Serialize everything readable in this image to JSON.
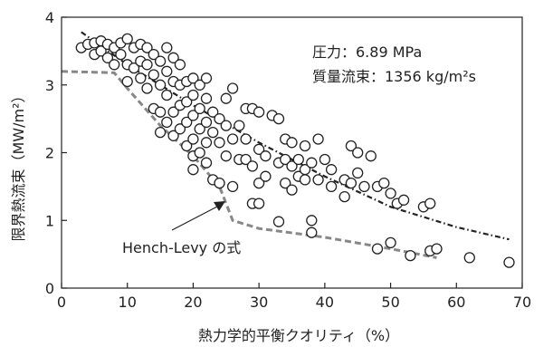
{
  "chart_data": {
    "type": "scatter",
    "xlabel": "熱力学的平衡クオリティ（%）",
    "ylabel": "限界熱流束（MW/m²）",
    "xlim": [
      0,
      70
    ],
    "ylim": [
      0,
      4
    ],
    "x_ticks": [
      "0",
      "10",
      "20",
      "30",
      "40",
      "50",
      "60",
      "70"
    ],
    "y_ticks": [
      "0",
      "1",
      "2",
      "3",
      "4"
    ],
    "grid": false,
    "annotations": {
      "pressure": "圧力：6.89 MPa",
      "mass_flux": "質量流束：1356 kg/m²s",
      "hench_levy": "Hench-Levy の式"
    },
    "series": [
      {
        "marker": "open-circle",
        "points": [
          [
            3,
            3.55
          ],
          [
            4,
            3.6
          ],
          [
            5,
            3.62
          ],
          [
            5,
            3.45
          ],
          [
            6,
            3.65
          ],
          [
            6,
            3.5
          ],
          [
            7,
            3.6
          ],
          [
            7,
            3.4
          ],
          [
            8,
            3.55
          ],
          [
            8,
            3.3
          ],
          [
            9,
            3.62
          ],
          [
            9,
            3.45
          ],
          [
            10,
            3.68
          ],
          [
            10,
            3.3
          ],
          [
            10,
            3.05
          ],
          [
            11,
            3.55
          ],
          [
            11,
            3.25
          ],
          [
            12,
            3.6
          ],
          [
            12,
            3.35
          ],
          [
            12,
            3.1
          ],
          [
            13,
            3.55
          ],
          [
            13,
            3.3
          ],
          [
            13,
            2.95
          ],
          [
            14,
            3.45
          ],
          [
            14,
            3.15
          ],
          [
            14,
            2.65
          ],
          [
            15,
            3.35
          ],
          [
            15,
            3.0
          ],
          [
            15,
            2.6
          ],
          [
            15,
            2.3
          ],
          [
            16,
            3.55
          ],
          [
            16,
            3.2
          ],
          [
            16,
            2.85
          ],
          [
            16,
            2.45
          ],
          [
            17,
            3.4
          ],
          [
            17,
            3.05
          ],
          [
            17,
            2.6
          ],
          [
            17,
            2.25
          ],
          [
            18,
            3.3
          ],
          [
            18,
            3.0
          ],
          [
            18,
            2.7
          ],
          [
            18,
            2.35
          ],
          [
            19,
            3.05
          ],
          [
            19,
            2.75
          ],
          [
            19,
            2.45
          ],
          [
            19,
            2.1
          ],
          [
            20,
            3.1
          ],
          [
            20,
            2.85
          ],
          [
            20,
            2.55
          ],
          [
            20,
            2.2
          ],
          [
            20,
            1.95
          ],
          [
            20,
            1.75
          ],
          [
            21,
            3.0
          ],
          [
            21,
            2.65
          ],
          [
            21,
            2.35
          ],
          [
            21,
            2.0
          ],
          [
            22,
            3.1
          ],
          [
            22,
            2.8
          ],
          [
            22,
            2.45
          ],
          [
            22,
            2.15
          ],
          [
            22,
            1.85
          ],
          [
            23,
            2.6
          ],
          [
            23,
            2.3
          ],
          [
            23,
            1.6
          ],
          [
            24,
            2.5
          ],
          [
            24,
            2.15
          ],
          [
            24,
            1.55
          ],
          [
            25,
            2.8
          ],
          [
            25,
            2.4
          ],
          [
            25,
            1.95
          ],
          [
            26,
            2.95
          ],
          [
            26,
            2.2
          ],
          [
            26,
            1.5
          ],
          [
            27,
            2.4
          ],
          [
            27,
            1.9
          ],
          [
            28,
            2.65
          ],
          [
            28,
            2.2
          ],
          [
            28,
            1.9
          ],
          [
            29,
            2.65
          ],
          [
            29,
            1.8
          ],
          [
            29,
            1.25
          ],
          [
            30,
            2.6
          ],
          [
            30,
            2.05
          ],
          [
            30,
            1.55
          ],
          [
            30,
            1.25
          ],
          [
            31,
            1.95
          ],
          [
            31,
            1.65
          ],
          [
            32,
            2.55
          ],
          [
            33,
            2.5
          ],
          [
            33,
            1.85
          ],
          [
            33,
            0.98
          ],
          [
            34,
            2.2
          ],
          [
            34,
            1.9
          ],
          [
            34,
            1.55
          ],
          [
            35,
            2.15
          ],
          [
            35,
            1.8
          ],
          [
            35,
            1.45
          ],
          [
            36,
            1.9
          ],
          [
            36,
            1.65
          ],
          [
            37,
            2.1
          ],
          [
            37,
            1.75
          ],
          [
            37,
            1.6
          ],
          [
            38,
            1.85
          ],
          [
            38,
            1.0
          ],
          [
            38,
            0.82
          ],
          [
            39,
            2.2
          ],
          [
            39,
            1.6
          ],
          [
            40,
            1.9
          ],
          [
            41,
            1.75
          ],
          [
            41,
            1.5
          ],
          [
            43,
            1.6
          ],
          [
            43,
            1.35
          ],
          [
            44,
            2.1
          ],
          [
            44,
            1.55
          ],
          [
            45,
            2.0
          ],
          [
            45,
            1.7
          ],
          [
            46,
            1.5
          ],
          [
            47,
            1.95
          ],
          [
            48,
            1.5
          ],
          [
            48,
            0.58
          ],
          [
            49,
            1.55
          ],
          [
            50,
            1.4
          ],
          [
            50,
            0.67
          ],
          [
            51,
            1.25
          ],
          [
            52,
            1.3
          ],
          [
            53,
            0.48
          ],
          [
            55,
            1.2
          ],
          [
            56,
            1.25
          ],
          [
            56,
            0.55
          ],
          [
            57,
            0.58
          ],
          [
            62,
            0.45
          ],
          [
            68,
            0.38
          ]
        ]
      }
    ],
    "lines": [
      {
        "style": "dash-dot",
        "color": "#222222",
        "points": [
          [
            3,
            3.78
          ],
          [
            10,
            3.3
          ],
          [
            20,
            2.7
          ],
          [
            30,
            2.15
          ],
          [
            40,
            1.65
          ],
          [
            50,
            1.2
          ],
          [
            60,
            0.9
          ],
          [
            68,
            0.72
          ]
        ]
      },
      {
        "name": "Hench-Levy の式",
        "style": "dashed",
        "color": "#888888",
        "points": [
          [
            0,
            3.2
          ],
          [
            8,
            3.18
          ],
          [
            10,
            2.95
          ],
          [
            15,
            2.4
          ],
          [
            20,
            1.95
          ],
          [
            24,
            1.5
          ],
          [
            26,
            1.0
          ],
          [
            30,
            0.88
          ],
          [
            40,
            0.75
          ],
          [
            50,
            0.58
          ],
          [
            57,
            0.45
          ]
        ]
      }
    ]
  }
}
